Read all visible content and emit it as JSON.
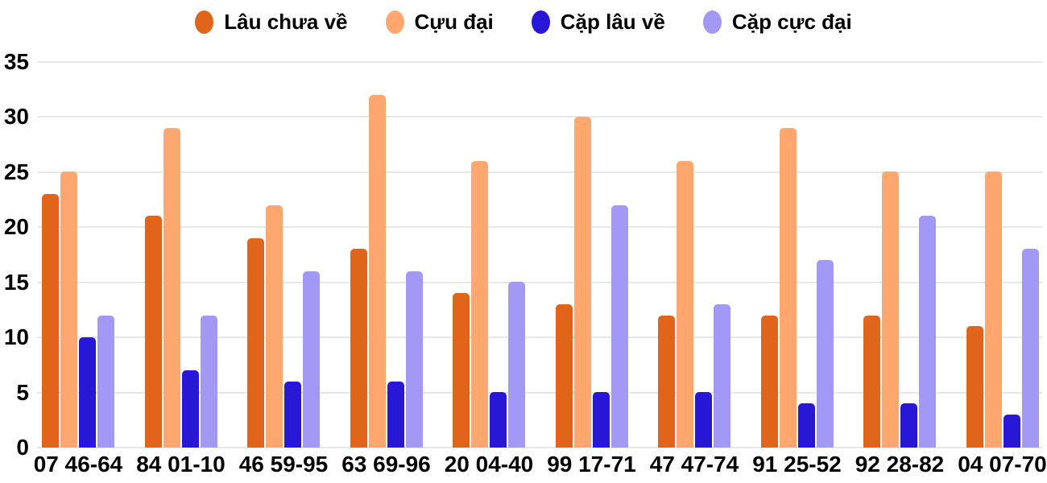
{
  "chart_data": {
    "type": "bar",
    "title": "",
    "xlabel": "",
    "ylabel": "",
    "categories": [
      "07 46-64",
      "84 01-10",
      "46 59-95",
      "63 69-96",
      "20 04-40",
      "99 17-71",
      "47 47-74",
      "91 25-52",
      "92 28-82",
      "04 07-70"
    ],
    "series": [
      {
        "name": "Lâu chưa về",
        "color": "#E0641A",
        "values": [
          23,
          21,
          19,
          18,
          14,
          13,
          12,
          12,
          12,
          11
        ]
      },
      {
        "name": "Cựu đại",
        "color": "#FFA76E",
        "values": [
          25,
          29,
          22,
          32,
          26,
          30,
          26,
          29,
          25,
          25
        ]
      },
      {
        "name": "Cặp lâu về",
        "color": "#2817D6",
        "values": [
          10,
          7,
          6,
          6,
          5,
          5,
          5,
          4,
          4,
          3
        ]
      },
      {
        "name": "Cặp cực đại",
        "color": "#A298F5",
        "values": [
          12,
          12,
          16,
          16,
          15,
          22,
          13,
          17,
          21,
          18
        ]
      }
    ],
    "ylim": [
      0,
      35
    ],
    "yticks": [
      0,
      5,
      10,
      15,
      20,
      25,
      30,
      35
    ],
    "grid": true,
    "legend_position": "top",
    "colors": {
      "background": "#FFFFFF",
      "gridline": "#E8E8E8",
      "text": "#000000"
    }
  }
}
